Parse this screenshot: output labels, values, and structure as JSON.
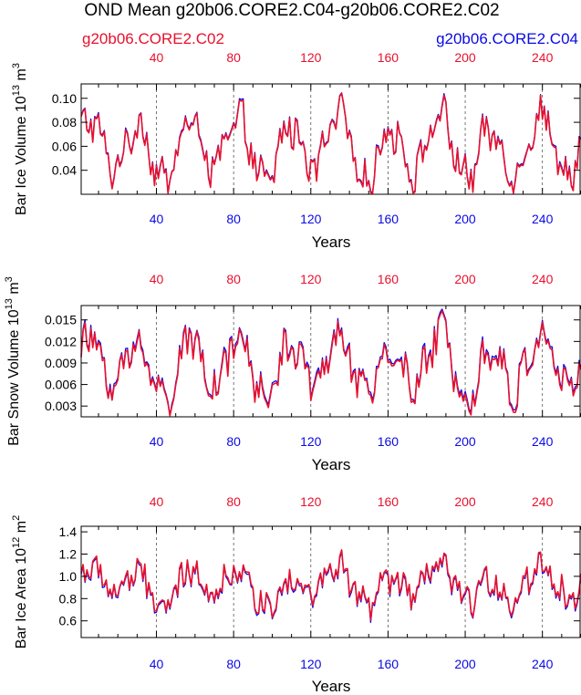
{
  "title": "OND Mean g20b06.CORE2.C04-g20b06.CORE2.C02",
  "legend": {
    "red_label": "g20b06.CORE2.C02",
    "blue_label": "g20b06.CORE2.C04"
  },
  "colors": {
    "red": "#e8112d",
    "blue": "#0a0ae6",
    "grid": "#555555",
    "axis": "#000000"
  },
  "chart_data": [
    {
      "type": "line",
      "title": "",
      "xlabel": "Years",
      "ylabel": "Bar Ice Volume 10",
      "ylabel_exp": "13",
      "ylabel_unit": " m",
      "ylabel_unit_exp": "3",
      "xlim": [
        1,
        260
      ],
      "ylim": [
        0.02,
        0.112
      ],
      "x_ticks": [
        40,
        80,
        120,
        160,
        200,
        240
      ],
      "top_ticks": [
        40,
        80,
        120,
        160,
        200,
        240
      ],
      "y_ticks": [
        0.04,
        0.06,
        0.08,
        0.1
      ],
      "y_tick_labels": [
        "0.04",
        "0.06",
        "0.08",
        "0.10"
      ],
      "base": 0.058,
      "amp": 0.022,
      "noise": 0.014,
      "drift": 0.007,
      "blue_offset": 0.001,
      "series": [
        {
          "name": "g20b06.CORE2.C04",
          "color": "blue"
        },
        {
          "name": "g20b06.CORE2.C02",
          "color": "red"
        }
      ]
    },
    {
      "type": "line",
      "title": "",
      "xlabel": "Years",
      "ylabel": "Bar Snow Volume 10",
      "ylabel_exp": "13",
      "ylabel_unit": " m",
      "ylabel_unit_exp": "3",
      "xlim": [
        1,
        260
      ],
      "ylim": [
        0.0015,
        0.017
      ],
      "x_ticks": [
        40,
        80,
        120,
        160,
        200,
        240
      ],
      "top_ticks": [
        40,
        80,
        120,
        160,
        200,
        240
      ],
      "y_ticks": [
        0.003,
        0.006,
        0.009,
        0.012,
        0.015
      ],
      "y_tick_labels": [
        "0.003",
        "0.006",
        "0.009",
        "0.012",
        "0.015"
      ],
      "base": 0.0085,
      "amp": 0.0035,
      "noise": 0.0025,
      "drift": 0.0012,
      "blue_offset": 0.0003,
      "series": [
        {
          "name": "g20b06.CORE2.C04",
          "color": "blue"
        },
        {
          "name": "g20b06.CORE2.C02",
          "color": "red"
        }
      ]
    },
    {
      "type": "line",
      "title": "",
      "xlabel": "Years",
      "ylabel": "Bar Ice Area 10",
      "ylabel_exp": "12",
      "ylabel_unit": " m",
      "ylabel_unit_exp": "2",
      "xlim": [
        1,
        260
      ],
      "ylim": [
        0.45,
        1.45
      ],
      "x_ticks": [
        40,
        80,
        120,
        160,
        200,
        240
      ],
      "top_ticks": [
        40,
        80,
        120,
        160,
        200,
        240
      ],
      "y_ticks": [
        0.6,
        0.8,
        1.0,
        1.2,
        1.4
      ],
      "y_tick_labels": [
        "0.6",
        "0.8",
        "1.0",
        "1.2",
        "1.4"
      ],
      "base": 0.92,
      "amp": 0.12,
      "noise": 0.13,
      "drift": 0.08,
      "blue_offset": -0.015,
      "series": [
        {
          "name": "g20b06.CORE2.C04",
          "color": "blue"
        },
        {
          "name": "g20b06.CORE2.C02",
          "color": "red"
        }
      ]
    }
  ]
}
